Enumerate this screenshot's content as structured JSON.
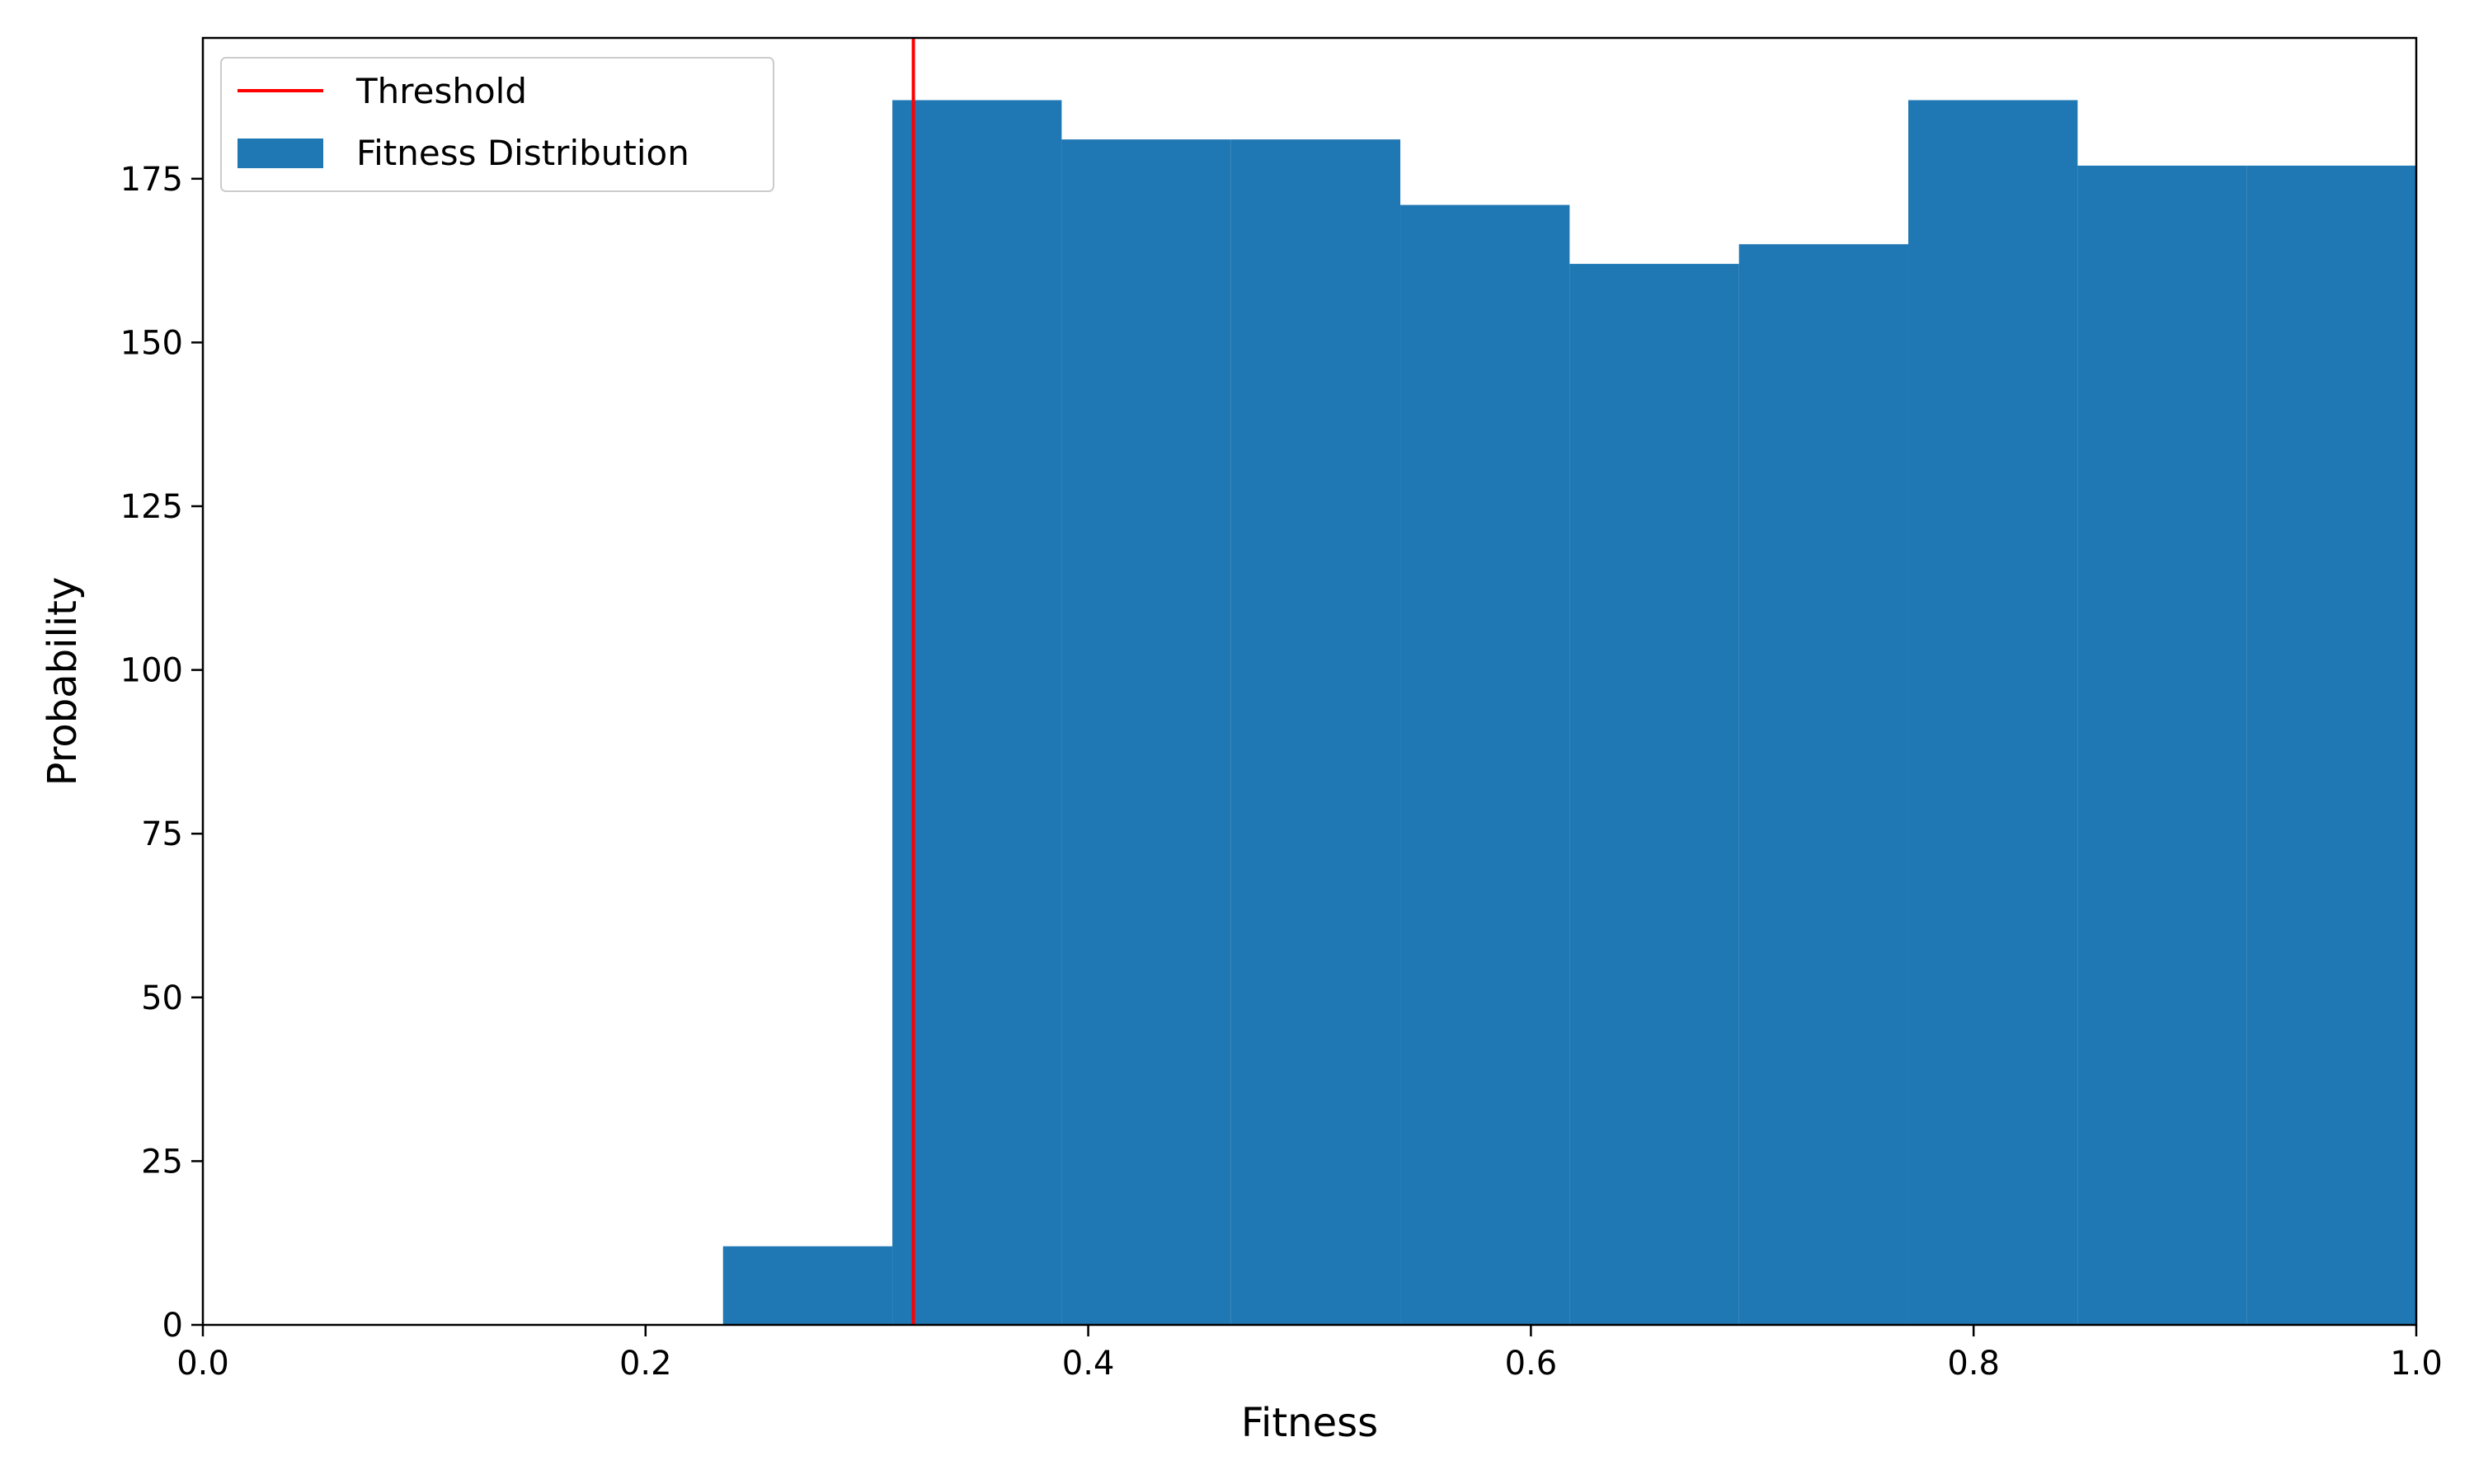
{
  "chart_data": {
    "type": "bar",
    "xlabel": "Fitness",
    "ylabel": "Probability",
    "xlim": [
      0.0,
      1.0
    ],
    "ylim": [
      0,
      196.5
    ],
    "xticks": [
      "0.0",
      "0.2",
      "0.4",
      "0.6",
      "0.8",
      "1.0"
    ],
    "yticks": [
      "0",
      "25",
      "50",
      "75",
      "100",
      "125",
      "150",
      "175"
    ],
    "bins": [
      {
        "x0": 0.235,
        "x1": 0.3115,
        "value": 12
      },
      {
        "x0": 0.3115,
        "x1": 0.388,
        "value": 187
      },
      {
        "x0": 0.388,
        "x1": 0.4645,
        "value": 181
      },
      {
        "x0": 0.4645,
        "x1": 0.541,
        "value": 181
      },
      {
        "x0": 0.541,
        "x1": 0.6175,
        "value": 171
      },
      {
        "x0": 0.6175,
        "x1": 0.694,
        "value": 162
      },
      {
        "x0": 0.694,
        "x1": 0.7705,
        "value": 165
      },
      {
        "x0": 0.7705,
        "x1": 0.847,
        "value": 187
      },
      {
        "x0": 0.847,
        "x1": 0.9235,
        "value": 177
      },
      {
        "x0": 0.9235,
        "x1": 1.0,
        "value": 177
      }
    ],
    "threshold": 0.321,
    "series": [
      {
        "name": "Fitness Distribution",
        "kind": "histogram",
        "color": "#1f77b4"
      },
      {
        "name": "Threshold",
        "kind": "vline",
        "color": "#ff0000"
      }
    ],
    "legend": {
      "placement": "top-left",
      "entries": [
        "Threshold",
        "Fitness Distribution"
      ]
    },
    "grid": false
  }
}
